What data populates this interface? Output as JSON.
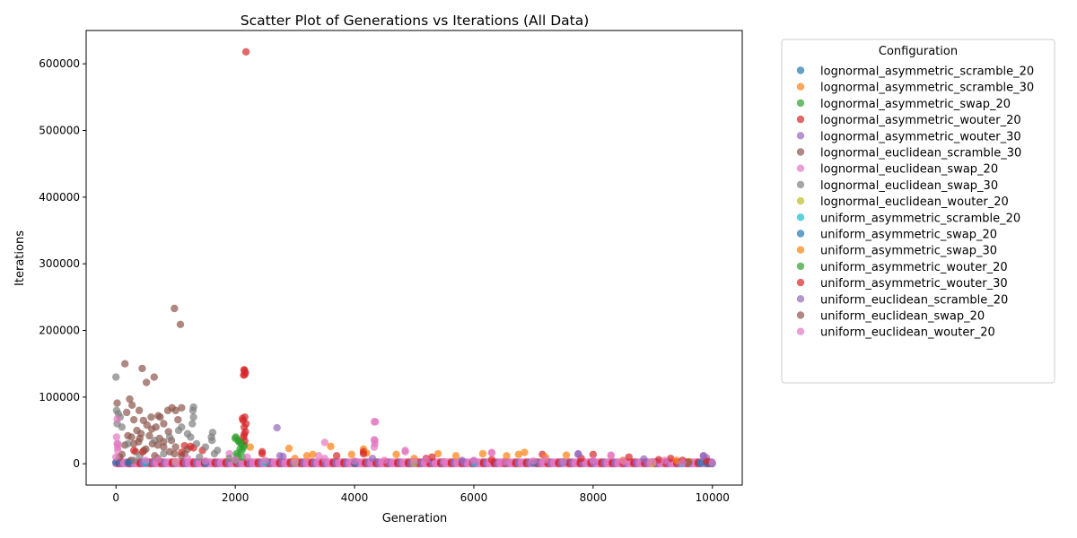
{
  "chart_data": {
    "type": "scatter",
    "title": "Scatter Plot of Generations vs Iterations (All Data)",
    "xlabel": "Generation",
    "ylabel": "Iterations",
    "xlim": [
      -500,
      10500
    ],
    "ylim": [
      -32000,
      650000
    ],
    "xticks": [
      0,
      2000,
      4000,
      6000,
      8000,
      10000
    ],
    "yticks": [
      0,
      100000,
      200000,
      300000,
      400000,
      500000,
      600000
    ],
    "grid": false,
    "legend": {
      "title": "Configuration",
      "placement": "outside-right-top"
    },
    "series": [
      {
        "name": "lognormal_asymmetric_scramble_20",
        "color": "#1f77b4",
        "points": [
          [
            0,
            2000
          ],
          [
            500,
            1500
          ],
          [
            1500,
            1000
          ],
          [
            3000,
            2000
          ],
          [
            5000,
            1500
          ],
          [
            7500,
            2500
          ],
          [
            9800,
            1000
          ],
          [
            10000,
            500
          ]
        ]
      },
      {
        "name": "lognormal_asymmetric_scramble_30",
        "color": "#ff7f0e",
        "points": [
          [
            2250,
            25000
          ],
          [
            2900,
            23000
          ],
          [
            3600,
            26000
          ],
          [
            4150,
            22000
          ],
          [
            5400,
            15000
          ],
          [
            6150,
            15000
          ],
          [
            6850,
            17000
          ],
          [
            7550,
            13000
          ],
          [
            8500,
            5000
          ],
          [
            9600,
            3000
          ],
          [
            3300,
            14000
          ],
          [
            5000,
            8000
          ],
          [
            3000,
            8000
          ]
        ]
      },
      {
        "name": "lognormal_asymmetric_swap_20",
        "color": "#2ca02c",
        "points": [
          [
            2000,
            38000
          ],
          [
            2050,
            35000
          ],
          [
            2100,
            30000
          ],
          [
            2150,
            28000
          ],
          [
            2080,
            22000
          ],
          [
            2020,
            15000
          ],
          [
            2120,
            10000
          ],
          [
            2000,
            5000
          ],
          [
            2060,
            33000
          ],
          [
            2140,
            25000
          ]
        ]
      },
      {
        "name": "lognormal_asymmetric_wouter_20",
        "color": "#d62728",
        "points": [
          [
            2180,
            618000
          ],
          [
            2150,
            141000
          ],
          [
            2170,
            137000
          ],
          [
            2140,
            133000
          ],
          [
            2160,
            70000
          ],
          [
            2130,
            65000
          ],
          [
            2150,
            55000
          ],
          [
            2170,
            48000
          ],
          [
            2140,
            40000
          ],
          [
            2160,
            34000
          ],
          [
            1150,
            27000
          ],
          [
            1300,
            24000
          ],
          [
            1450,
            20000
          ],
          [
            2450,
            18000
          ],
          [
            4150,
            18000
          ],
          [
            5300,
            10000
          ],
          [
            7150,
            14000
          ],
          [
            8000,
            14000
          ],
          [
            9300,
            8000
          ]
        ]
      },
      {
        "name": "lognormal_asymmetric_wouter_30",
        "color": "#9467bd",
        "points": [
          [
            2700,
            54000
          ],
          [
            2750,
            12000
          ],
          [
            4300,
            8000
          ],
          [
            5800,
            5000
          ],
          [
            7750,
            15000
          ],
          [
            8850,
            7000
          ],
          [
            9850,
            12000
          ],
          [
            9900,
            9000
          ]
        ]
      },
      {
        "name": "lognormal_euclidean_scramble_30",
        "color": "#8c564b",
        "points": [
          [
            980,
            233000
          ],
          [
            1080,
            209000
          ],
          [
            150,
            150000
          ],
          [
            440,
            143000
          ],
          [
            640,
            130000
          ],
          [
            510,
            122000
          ],
          [
            230,
            97000
          ],
          [
            270,
            88000
          ],
          [
            20,
            91000
          ],
          [
            1100,
            84000
          ],
          [
            1000,
            80000
          ],
          [
            940,
            84000
          ],
          [
            390,
            80000
          ],
          [
            180,
            77000
          ],
          [
            710,
            72000
          ],
          [
            590,
            70000
          ],
          [
            300,
            66000
          ],
          [
            460,
            65000
          ],
          [
            740,
            70000
          ],
          [
            870,
            80000
          ],
          [
            1040,
            66000
          ],
          [
            800,
            60000
          ],
          [
            520,
            58000
          ],
          [
            670,
            55000
          ],
          [
            350,
            50000
          ],
          [
            880,
            48000
          ],
          [
            420,
            45000
          ],
          [
            560,
            42000
          ],
          [
            260,
            40000
          ],
          [
            730,
            38000
          ],
          [
            930,
            35000
          ],
          [
            380,
            33000
          ],
          [
            610,
            30000
          ],
          [
            150,
            28000
          ],
          [
            800,
            25000
          ],
          [
            1200,
            22000
          ],
          [
            470,
            20000
          ],
          [
            330,
            18000
          ],
          [
            980,
            15000
          ],
          [
            1100,
            12000
          ],
          [
            60,
            10000
          ],
          [
            700,
            8000
          ],
          [
            250,
            5000
          ]
        ]
      },
      {
        "name": "lognormal_euclidean_swap_20",
        "color": "#e377c2",
        "points": [
          [
            3500,
            32000
          ],
          [
            4350,
            63000
          ],
          [
            4330,
            36000
          ],
          [
            4340,
            30000
          ],
          [
            4850,
            20000
          ],
          [
            6300,
            17000
          ],
          [
            8300,
            13000
          ],
          [
            1900,
            15000
          ],
          [
            30,
            30000
          ],
          [
            30,
            25000
          ]
        ]
      },
      {
        "name": "lognormal_euclidean_swap_30",
        "color": "#7f7f7f",
        "points": [
          [
            0,
            130000
          ],
          [
            1300,
            85000
          ],
          [
            1290,
            80000
          ],
          [
            1300,
            70000
          ],
          [
            1280,
            60000
          ],
          [
            1620,
            47000
          ],
          [
            1600,
            40000
          ],
          [
            1610,
            35000
          ],
          [
            10,
            80000
          ],
          [
            40,
            75000
          ],
          [
            70,
            70000
          ],
          [
            20,
            60000
          ],
          [
            100,
            55000
          ],
          [
            1100,
            55000
          ],
          [
            1050,
            50000
          ],
          [
            1200,
            45000
          ],
          [
            1250,
            40000
          ],
          [
            900,
            40000
          ],
          [
            650,
            35000
          ],
          [
            1350,
            30000
          ],
          [
            200,
            30000
          ],
          [
            1500,
            25000
          ],
          [
            1700,
            20000
          ],
          [
            1650,
            15000
          ],
          [
            800,
            15000
          ],
          [
            400,
            12000
          ],
          [
            1400,
            10000
          ],
          [
            1900,
            8000
          ],
          [
            300,
            5000
          ]
        ]
      },
      {
        "name": "lognormal_euclidean_wouter_20",
        "color": "#bcbd22",
        "points": [
          [
            1000,
            3000
          ],
          [
            3000,
            2000
          ],
          [
            5000,
            1500
          ],
          [
            9000,
            1000
          ]
        ]
      },
      {
        "name": "uniform_asymmetric_scramble_20",
        "color": "#17becf",
        "points": [
          [
            500,
            2000
          ],
          [
            2500,
            1500
          ],
          [
            6000,
            1000
          ],
          [
            9500,
            800
          ]
        ]
      },
      {
        "name": "uniform_asymmetric_swap_20",
        "color": "#1f77b4",
        "points": [
          [
            200,
            1500
          ],
          [
            4000,
            1000
          ],
          [
            7000,
            1200
          ],
          [
            9900,
            600
          ]
        ]
      },
      {
        "name": "uniform_asymmetric_swap_30",
        "color": "#ff7f0e",
        "points": [
          [
            3200,
            12000
          ],
          [
            3950,
            14000
          ],
          [
            4200,
            16000
          ],
          [
            4700,
            14000
          ],
          [
            5700,
            12000
          ],
          [
            6550,
            12000
          ],
          [
            6750,
            14000
          ],
          [
            7200,
            10000
          ],
          [
            9400,
            5000
          ]
        ]
      },
      {
        "name": "uniform_asymmetric_wouter_20",
        "color": "#2ca02c",
        "points": [
          [
            2010,
            40000
          ],
          [
            2090,
            32000
          ],
          [
            2110,
            20000
          ],
          [
            2040,
            12000
          ]
        ]
      },
      {
        "name": "uniform_asymmetric_wouter_30",
        "color": "#d62728",
        "points": [
          [
            2150,
            140000
          ],
          [
            2160,
            134000
          ],
          [
            2120,
            68000
          ],
          [
            2180,
            60000
          ],
          [
            2150,
            44000
          ],
          [
            2450,
            15000
          ],
          [
            3700,
            12000
          ],
          [
            4150,
            15000
          ],
          [
            5200,
            8000
          ],
          [
            6300,
            6000
          ],
          [
            7800,
            8000
          ],
          [
            8600,
            10000
          ],
          [
            9100,
            6000
          ],
          [
            9500,
            5000
          ],
          [
            9900,
            4000
          ],
          [
            300,
            20000
          ],
          [
            450,
            18000
          ],
          [
            1100,
            17000
          ],
          [
            1250,
            26000
          ]
        ]
      },
      {
        "name": "uniform_euclidean_scramble_20",
        "color": "#9467bd",
        "points": [
          [
            2800,
            11000
          ],
          [
            7750,
            14000
          ],
          [
            9850,
            12000
          ],
          [
            6000,
            4000
          ],
          [
            8000,
            3000
          ]
        ]
      },
      {
        "name": "uniform_euclidean_swap_20",
        "color": "#8c564b",
        "points": [
          [
            200,
            42000
          ],
          [
            400,
            38000
          ],
          [
            600,
            52000
          ],
          [
            800,
            33000
          ],
          [
            300,
            30000
          ],
          [
            700,
            28000
          ],
          [
            1000,
            25000
          ],
          [
            500,
            22000
          ],
          [
            900,
            18000
          ],
          [
            1150,
            15000
          ],
          [
            100,
            14000
          ],
          [
            650,
            12000
          ],
          [
            9600,
            2000
          ]
        ]
      },
      {
        "name": "uniform_euclidean_wouter_20",
        "color": "#e377c2",
        "points": [
          [
            20,
            67000
          ],
          [
            10,
            40000
          ],
          [
            20,
            30000
          ],
          [
            30,
            20000
          ],
          [
            0,
            10000
          ],
          [
            500,
            5000
          ],
          [
            1000,
            3000
          ],
          [
            1500,
            4000
          ],
          [
            2000,
            6000
          ],
          [
            2500,
            5000
          ],
          [
            3000,
            3000
          ],
          [
            3500,
            8000
          ],
          [
            4000,
            4000
          ],
          [
            4330,
            63000
          ],
          [
            4340,
            35000
          ],
          [
            4330,
            25000
          ],
          [
            4500,
            5000
          ],
          [
            5000,
            4000
          ],
          [
            5500,
            3000
          ],
          [
            6000,
            5000
          ],
          [
            6300,
            16000
          ],
          [
            6500,
            3000
          ],
          [
            7000,
            4000
          ],
          [
            7500,
            3000
          ],
          [
            8000,
            5000
          ],
          [
            8300,
            12000
          ],
          [
            8500,
            4000
          ],
          [
            9000,
            3000
          ],
          [
            9500,
            2000
          ],
          [
            10000,
            1500
          ],
          [
            4850,
            18000
          ],
          [
            3400,
            12000
          ],
          [
            2200,
            10000
          ],
          [
            1200,
            8000
          ],
          [
            700,
            6000
          ],
          [
            5200,
            6000
          ],
          [
            7200,
            6000
          ],
          [
            9200,
            5000
          ]
        ]
      }
    ]
  }
}
